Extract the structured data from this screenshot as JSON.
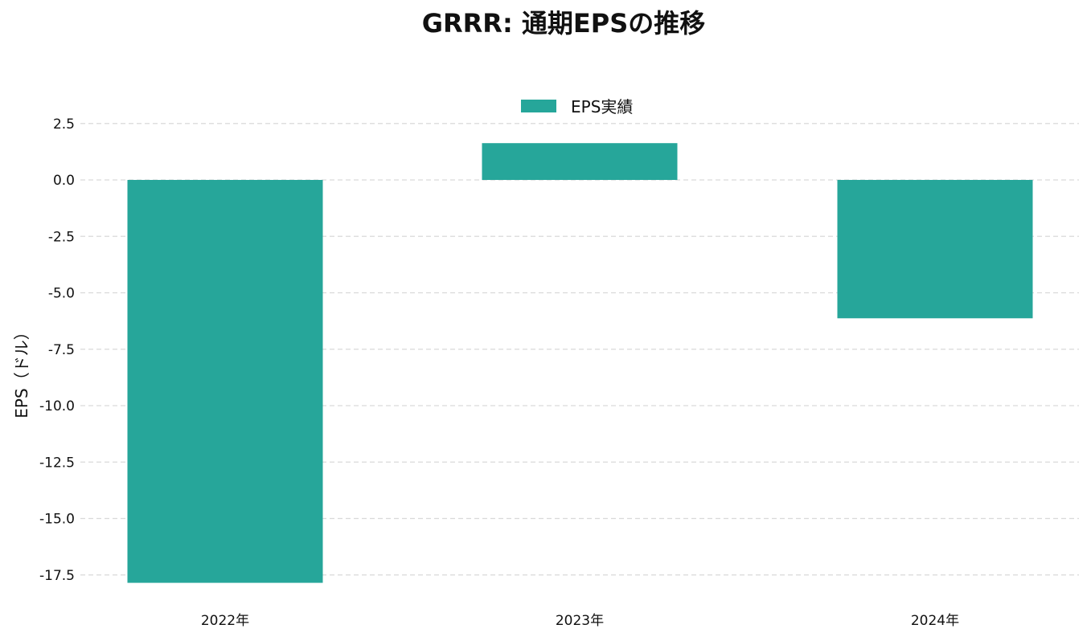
{
  "chart_data": {
    "type": "bar",
    "title": "GRRR: 通期EPSの推移",
    "xlabel": "",
    "ylabel": "EPS（ドル）",
    "categories": [
      "2022年",
      "2023年",
      "2024年"
    ],
    "series": [
      {
        "name": "EPS実績",
        "values": [
          -17.85,
          1.63,
          -6.13
        ],
        "color": "#26a69a"
      }
    ],
    "ylim": [
      -18.0,
      3.2
    ],
    "yticks": [
      2.5,
      0.0,
      -2.5,
      -5.0,
      -7.5,
      -10.0,
      -12.5,
      -15.0,
      -17.5
    ],
    "ytick_labels": [
      "2.5",
      "0.0",
      "-2.5",
      "-5.0",
      "-7.5",
      "-10.0",
      "-12.5",
      "-15.0",
      "-17.5"
    ],
    "grid": true,
    "legend_position": "top-center"
  }
}
